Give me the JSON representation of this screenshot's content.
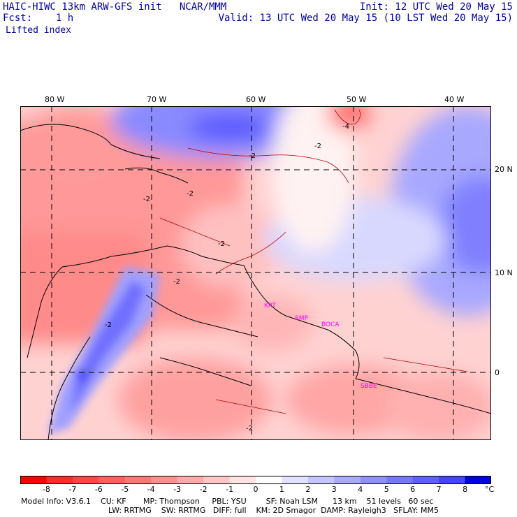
{
  "header": {
    "title": "HAIC-HIWC 13km ARW-GFS init   NCAR/MMM",
    "init": "Init: 12 UTC Wed 20 May 15",
    "fcst": "Fcst:    1 h",
    "valid": "Valid: 13 UTC Wed 20 May 15 (10 LST Wed 20 May 15)",
    "field": "Lifted index"
  },
  "axes": {
    "lon_labels": [
      "80 W",
      "70 W",
      "60 W",
      "50 W",
      "40 W"
    ],
    "lat_labels": [
      "20 N",
      "10 N",
      "0"
    ]
  },
  "stations": [
    "KPT",
    "SMP",
    "BOCA",
    "SBBE"
  ],
  "contour_labels": [
    "-2",
    "-2",
    "-2",
    "-2",
    "-2",
    "-2",
    "-2",
    "-2",
    "-4"
  ],
  "colorbar": {
    "labels": [
      "-8",
      "-7",
      "-6",
      "-5",
      "-4",
      "-3",
      "-2",
      "-1",
      "0",
      "1",
      "2",
      "3",
      "4",
      "5",
      "6",
      "7",
      "8"
    ],
    "unit": "°C",
    "colors": [
      "#ff0000",
      "#ff2a2a",
      "#ff4545",
      "#ff6060",
      "#ff7878",
      "#ff9090",
      "#ffaaaa",
      "#ffc6c6",
      "#ffe2e2",
      "#ffffff",
      "#e2e2ff",
      "#c6c6ff",
      "#aaaaff",
      "#9090ff",
      "#7878ff",
      "#6060ff",
      "#4545ff",
      "#0000e0"
    ]
  },
  "footer": {
    "line1": "Model Info: V3.6.1    CU: KF       MP: Thompson     PBL: YSU        SF: Noah LSM      13 km    51 levels   60 sec",
    "line2": "LW: RRTMG    SW: RRTMG   DIFF: full    KM: 2D Smagor  DAMP: Rayleigh3   SFLAY: MM5"
  }
}
